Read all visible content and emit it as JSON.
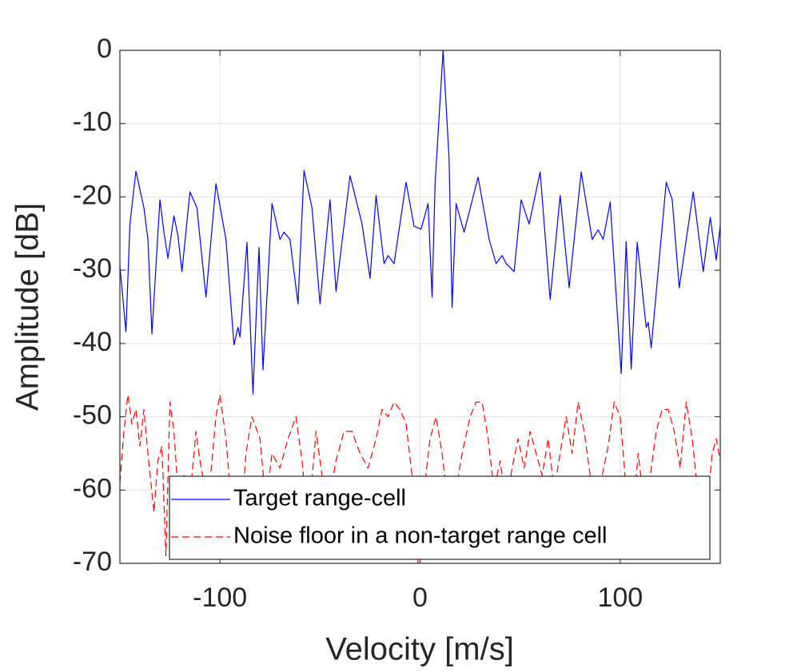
{
  "chart_data": {
    "type": "line",
    "xlabel": "Velocity [m/s]",
    "ylabel": "Amplitude [dB]",
    "xlim": [
      -150,
      150
    ],
    "xticks": [
      -100,
      0,
      100
    ],
    "ylim": [
      -70,
      0
    ],
    "yticks": [
      -70,
      -60,
      -50,
      -40,
      -30,
      -20,
      -10,
      0
    ],
    "grid": true,
    "legend": "lower right",
    "series": [
      {
        "name": "Target range-cell",
        "color": "#0000ff",
        "line_style": "solid",
        "x": [
          -150,
          -147,
          -145,
          -142,
          -138,
          -136,
          -134,
          -130,
          -128,
          -126,
          -123,
          -121,
          -119,
          -115,
          -111.5,
          -107,
          -102,
          -97,
          -93,
          -91,
          -90,
          -86.5,
          -83.5,
          -80.5,
          -78.5,
          -74,
          -70,
          -68,
          -65,
          -61,
          -58,
          -54,
          -50,
          -45,
          -42,
          -35,
          -29,
          -25,
          -22,
          -18,
          -16,
          -13,
          -7,
          -3,
          0.5,
          4,
          6,
          7.5,
          11.5,
          14.5,
          16,
          18,
          22,
          29,
          34.5,
          38,
          41,
          43,
          47,
          50.5,
          54.5,
          60,
          65,
          70,
          74.5,
          80.5,
          86,
          89,
          91.5,
          95,
          100.5,
          103,
          105.5,
          108.5,
          113,
          114,
          115.5,
          123,
          126,
          129.5,
          136.5,
          141.5,
          145,
          148,
          150
        ],
        "values": [
          -29.4,
          -38.4,
          -23.7,
          -16.5,
          -21.5,
          -25.8,
          -38.7,
          -20.4,
          -24.8,
          -28.4,
          -22.6,
          -25.3,
          -30.2,
          -19.3,
          -21.5,
          -33.7,
          -18.2,
          -25.8,
          -40.2,
          -37.8,
          -39.1,
          -26.2,
          -46.9,
          -26.9,
          -43.6,
          -20.9,
          -25.8,
          -24.8,
          -25.8,
          -34.6,
          -16.4,
          -21.5,
          -34.6,
          -20.4,
          -32.9,
          -17.1,
          -23.7,
          -31.1,
          -19.8,
          -29.1,
          -28,
          -29.1,
          -18,
          -24,
          -24.4,
          -20.9,
          -33.7,
          -18.2,
          0,
          -14.9,
          -35.1,
          -20.9,
          -24.8,
          -17.3,
          -25.8,
          -29.1,
          -28,
          -29.1,
          -30.2,
          -20.4,
          -23.7,
          -16.6,
          -34,
          -19.8,
          -32.4,
          -16.6,
          -25.8,
          -24.5,
          -25.8,
          -20.7,
          -44.1,
          -26.1,
          -43.5,
          -26.2,
          -37.8,
          -37.1,
          -40.6,
          -18,
          -20.4,
          -32.4,
          -19.3,
          -30.2,
          -22.8,
          -28.6,
          -23.9
        ]
      },
      {
        "name": "Noise floor in a non-target range cell",
        "color": "#ff0000",
        "line_style": "dashed",
        "x": [
          -150,
          -148,
          -146,
          -144,
          -142,
          -140,
          -138,
          -136,
          -133,
          -131,
          -129,
          -127,
          -125,
          -123,
          -121,
          -118,
          -116,
          -112,
          -110,
          -106,
          -102,
          -100,
          -97,
          -94,
          -90,
          -87,
          -84,
          -80,
          -77,
          -74,
          -70,
          -66,
          -62,
          -59,
          -56,
          -52,
          -49,
          -46,
          -42,
          -38,
          -34,
          -30,
          -26,
          -22,
          -19,
          -16,
          -13,
          -10,
          -7,
          -4,
          -1,
          2,
          5,
          8,
          11,
          14,
          18,
          21,
          25,
          28,
          31,
          34,
          37,
          40,
          43,
          46,
          49,
          52,
          55,
          58,
          61,
          64,
          67,
          70,
          73,
          76,
          79,
          82,
          85,
          88,
          91,
          94,
          97,
          100,
          103,
          106,
          109,
          112,
          115,
          118,
          121,
          124,
          127,
          130,
          133,
          136,
          139,
          142,
          146,
          148,
          150
        ],
        "values": [
          -59,
          -52,
          -47,
          -51,
          -49,
          -54,
          -49,
          -55,
          -63,
          -56,
          -54,
          -69,
          -48,
          -52,
          -60,
          -58,
          -64,
          -52,
          -56,
          -62,
          -50,
          -47,
          -53,
          -63,
          -66,
          -55,
          -50,
          -53,
          -62,
          -55,
          -57,
          -53,
          -50,
          -56,
          -65,
          -52,
          -58,
          -62,
          -56,
          -52,
          -52,
          -55,
          -57,
          -53,
          -49,
          -50,
          -48,
          -49,
          -51,
          -58,
          -70,
          -60,
          -53,
          -50,
          -55,
          -62,
          -60,
          -55,
          -50,
          -48,
          -48,
          -53,
          -60,
          -56,
          -62,
          -57,
          -53,
          -57,
          -52,
          -55,
          -58,
          -53,
          -60,
          -55,
          -50,
          -55,
          -48,
          -52,
          -58,
          -62,
          -58,
          -54,
          -48,
          -50,
          -60,
          -65,
          -55,
          -62,
          -58,
          -52,
          -49,
          -49,
          -52,
          -57,
          -48,
          -53,
          -61,
          -66,
          -55,
          -53,
          -56
        ]
      }
    ]
  }
}
